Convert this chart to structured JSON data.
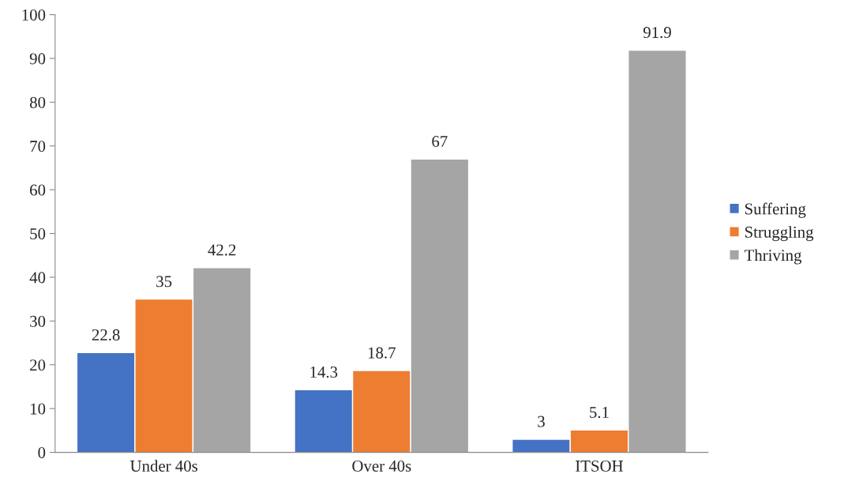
{
  "chart_data": {
    "type": "bar",
    "categories": [
      "Under 40s",
      "Over 40s",
      "ITSOH"
    ],
    "series": [
      {
        "name": "Suffering",
        "color": "#4472c4",
        "values": [
          22.8,
          14.3,
          3
        ]
      },
      {
        "name": "Struggling",
        "color": "#ed7d31",
        "values": [
          35,
          18.7,
          5.1
        ]
      },
      {
        "name": "Thriving",
        "color": "#a5a5a5",
        "values": [
          42.2,
          67,
          91.9
        ]
      }
    ],
    "ylim": [
      0,
      100
    ],
    "yticks": [
      0,
      10,
      20,
      30,
      40,
      50,
      60,
      70,
      80,
      90,
      100
    ],
    "grid": false,
    "legend": "right",
    "data_labels": true
  }
}
